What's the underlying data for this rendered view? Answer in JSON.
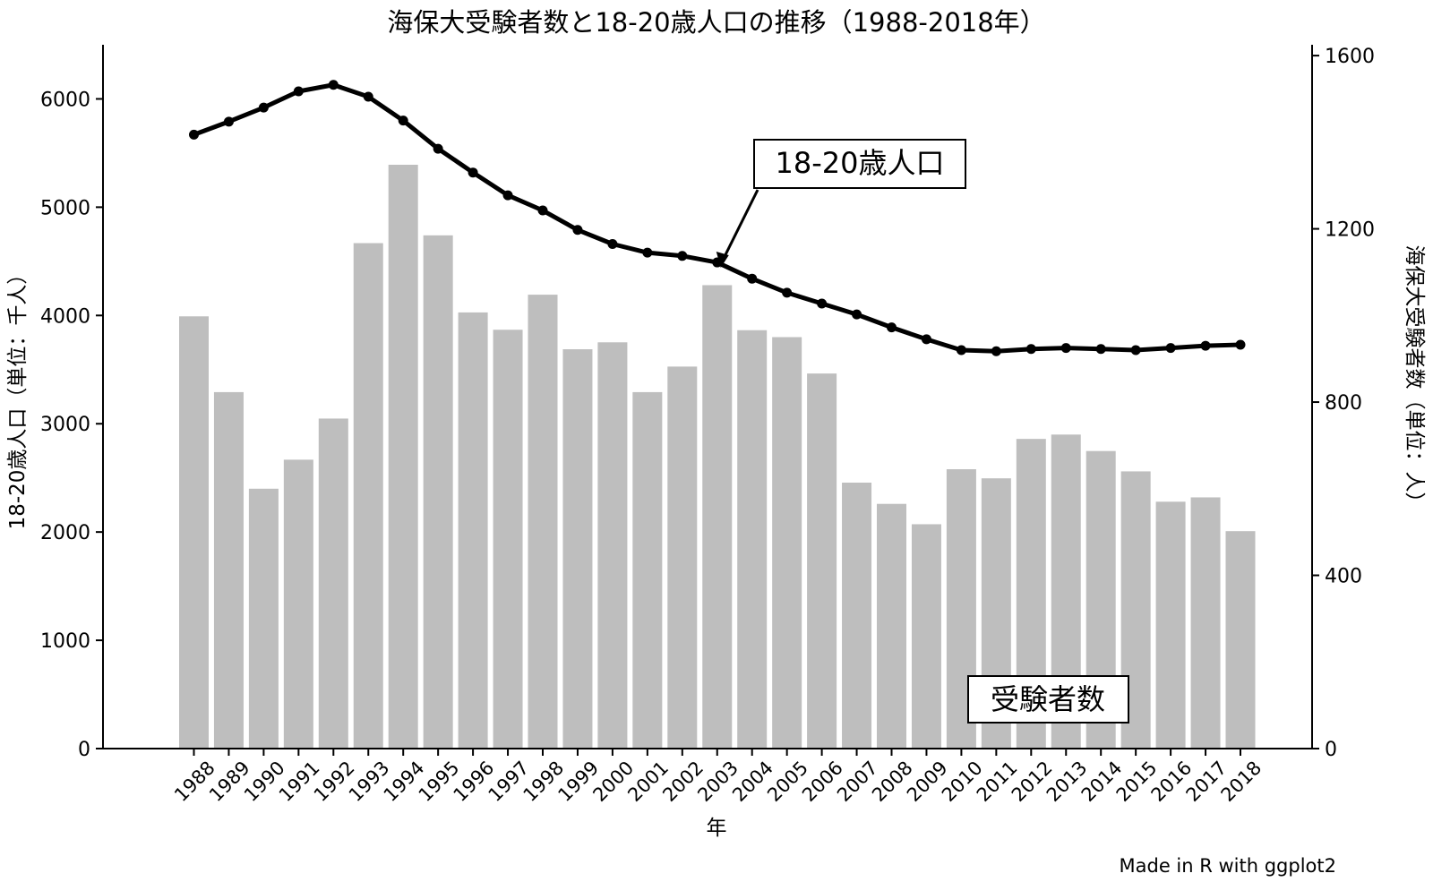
{
  "chart_data": {
    "type": "bar+line",
    "title": "海保大受験者数と18-20歳人口の推移（1988-2018年）",
    "xlabel": "年",
    "ylabel_left": "18-20歳人口（単位：千人）",
    "ylabel_right": "海保大受験者数（単位：人）",
    "caption": "Made in R with ggplot2",
    "categories": [
      "1988",
      "1989",
      "1990",
      "1991",
      "1992",
      "1993",
      "1994",
      "1995",
      "1996",
      "1997",
      "1998",
      "1999",
      "2000",
      "2001",
      "2002",
      "2003",
      "2004",
      "2005",
      "2006",
      "2007",
      "2008",
      "2009",
      "2010",
      "2011",
      "2012",
      "2013",
      "2014",
      "2015",
      "2016",
      "2017",
      "2018"
    ],
    "left_axis": {
      "ylim": [
        0,
        6500
      ],
      "ticks": [
        0,
        1000,
        2000,
        3000,
        4000,
        5000,
        6000
      ]
    },
    "right_axis": {
      "ylim": [
        0,
        1625
      ],
      "ticks": [
        0,
        400,
        800,
        1200,
        1600
      ]
    },
    "series": [
      {
        "name": "受験者数",
        "type": "bar",
        "axis": "right",
        "color": "#bebebe",
        "values": [
          998,
          823,
          600,
          667,
          762,
          1167,
          1348,
          1185,
          1007,
          967,
          1048,
          922,
          938,
          823,
          882,
          1070,
          966,
          950,
          866,
          614,
          565,
          518,
          645,
          624,
          715,
          725,
          687,
          640,
          570,
          580,
          502
        ]
      },
      {
        "name": "18-20歳人口",
        "type": "line",
        "axis": "left",
        "color": "#000000",
        "values": [
          5670,
          5790,
          5920,
          6070,
          6130,
          6020,
          5800,
          5540,
          5320,
          5110,
          4970,
          4790,
          4660,
          4580,
          4550,
          4490,
          4340,
          4210,
          4110,
          4010,
          3890,
          3780,
          3680,
          3670,
          3690,
          3700,
          3690,
          3680,
          3700,
          3720,
          3730
        ]
      }
    ],
    "annotations": [
      {
        "text": "18-20歳人口"
      },
      {
        "text": "受験者数"
      }
    ],
    "grid": false,
    "legend": "none"
  }
}
